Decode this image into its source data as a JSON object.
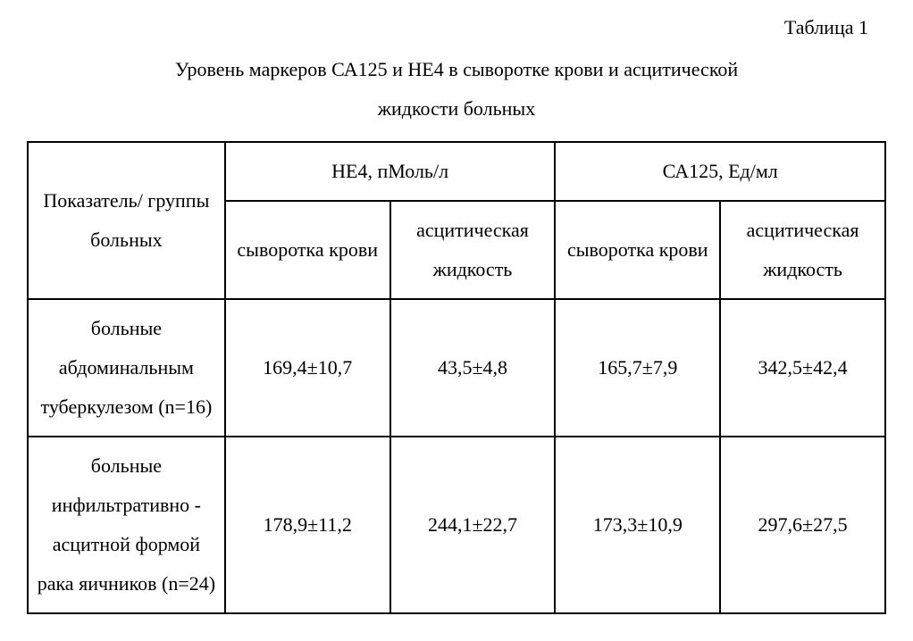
{
  "table_label": "Таблица 1",
  "caption_line1": "Уровень маркеров СА125 и НЕ4 в сыворотке крови и асцитической",
  "caption_line2": "жидкости больных",
  "headers": {
    "indicator": "Показатель/ группы больных",
    "he4": "НЕ4, пМоль/л",
    "ca125": "СА125, Ед/мл",
    "serum": "сыворотка крови",
    "ascitic": "асцитическая жидкость"
  },
  "rows": [
    {
      "label": "больные абдоминальным туберкулезом (n=16)",
      "he4_serum": "169,4±10,7",
      "he4_ascitic": "43,5±4,8",
      "ca125_serum": "165,7±7,9",
      "ca125_ascitic": "342,5±42,4"
    },
    {
      "label": "больные инфильтративно - асцитной формой рака яичников (n=24)",
      "he4_serum": "178,9±11,2",
      "he4_ascitic": "244,1±22,7",
      "ca125_serum": "173,3±10,9",
      "ca125_ascitic": "297,6±27,5"
    }
  ]
}
